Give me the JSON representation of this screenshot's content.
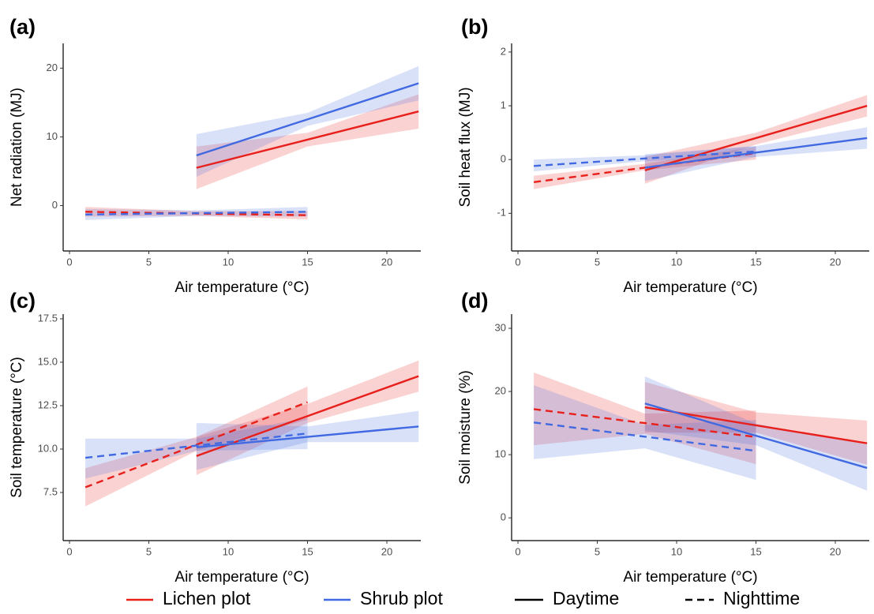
{
  "chart_data": [
    {
      "type": "line",
      "panel_label": "(a)",
      "xlabel": "Air temperature (°C)",
      "ylabel": "Net radiation (MJ)",
      "xlim": [
        -0.4,
        22.14
      ],
      "xticks": [
        0,
        5,
        10,
        15,
        20
      ],
      "ylim": [
        -6.6,
        23.6
      ],
      "yticks": [
        0,
        10,
        20
      ],
      "series": [
        {
          "color": "#e8201c",
          "dash": "solid",
          "x": [
            8,
            15,
            22
          ],
          "values": [
            5.5,
            9.6,
            13.7
          ],
          "lower": [
            2.4,
            8.6,
            11.2
          ],
          "upper": [
            8.6,
            10.6,
            16.2
          ]
        },
        {
          "color": "#e8201c",
          "dash": "dashed",
          "x": [
            1,
            8,
            15
          ],
          "values": [
            -0.9,
            -1.15,
            -1.4
          ],
          "lower": [
            -1.6,
            -1.5,
            -2.0
          ],
          "upper": [
            -0.2,
            -0.8,
            -0.8
          ]
        },
        {
          "color": "#4169e1",
          "dash": "solid",
          "x": [
            8,
            15,
            22
          ],
          "values": [
            7.3,
            12.55,
            17.8
          ],
          "lower": [
            4.2,
            11.6,
            15.3
          ],
          "upper": [
            10.4,
            13.5,
            20.3
          ]
        },
        {
          "color": "#4169e1",
          "dash": "dashed",
          "x": [
            1,
            8,
            15
          ],
          "values": [
            -1.3,
            -1.1,
            -0.9
          ],
          "lower": [
            -2.1,
            -1.5,
            -1.6
          ],
          "upper": [
            -0.5,
            -0.7,
            -0.2
          ]
        }
      ]
    },
    {
      "type": "line",
      "panel_label": "(b)",
      "xlabel": "Air temperature (°C)",
      "ylabel": "Soil heat flux (MJ)",
      "xlim": [
        -0.4,
        22.14
      ],
      "xticks": [
        0,
        5,
        10,
        15,
        20
      ],
      "ylim": [
        -1.7,
        2.16
      ],
      "yticks": [
        -1,
        0,
        1,
        2
      ],
      "series": [
        {
          "color": "#e8201c",
          "dash": "solid",
          "x": [
            8,
            15,
            22
          ],
          "values": [
            -0.2,
            0.4,
            1.0
          ],
          "lower": [
            -0.45,
            0.28,
            0.8
          ],
          "upper": [
            0.05,
            0.5,
            1.2
          ]
        },
        {
          "color": "#e8201c",
          "dash": "dashed",
          "x": [
            1,
            8,
            15
          ],
          "values": [
            -0.42,
            -0.15,
            0.12
          ],
          "lower": [
            -0.55,
            -0.2,
            0.0
          ],
          "upper": [
            -0.3,
            -0.08,
            0.24
          ]
        },
        {
          "color": "#4169e1",
          "dash": "solid",
          "x": [
            8,
            15,
            22
          ],
          "values": [
            -0.15,
            0.13,
            0.4
          ],
          "lower": [
            -0.4,
            0.05,
            0.2
          ],
          "upper": [
            0.1,
            0.25,
            0.6
          ]
        },
        {
          "color": "#4169e1",
          "dash": "dashed",
          "x": [
            1,
            8,
            15
          ],
          "values": [
            -0.12,
            0.02,
            0.15
          ],
          "lower": [
            -0.22,
            -0.03,
            0.05
          ],
          "upper": [
            0.0,
            0.08,
            0.25
          ]
        }
      ]
    },
    {
      "type": "line",
      "panel_label": "(c)",
      "xlabel": "Air temperature (°C)",
      "ylabel": "Soil temperature (°C)",
      "xlim": [
        -0.4,
        22.14
      ],
      "xticks": [
        0,
        5,
        10,
        15,
        20
      ],
      "ylim": [
        4.73,
        17.77
      ],
      "yticks": [
        7.5,
        {
          "value": 10,
          "label": "10.0"
        },
        12.5,
        {
          "value": 15,
          "label": "15.0"
        },
        17.5
      ],
      "series": [
        {
          "color": "#e8201c",
          "dash": "solid",
          "x": [
            8,
            15,
            22
          ],
          "values": [
            9.6,
            11.9,
            14.2
          ],
          "lower": [
            8.5,
            11.5,
            13.3
          ],
          "upper": [
            10.7,
            12.6,
            15.1
          ]
        },
        {
          "color": "#e8201c",
          "dash": "dashed",
          "x": [
            1,
            8,
            15
          ],
          "values": [
            7.8,
            10.25,
            12.7
          ],
          "lower": [
            6.7,
            9.9,
            11.7
          ],
          "upper": [
            8.9,
            10.7,
            13.6
          ]
        },
        {
          "color": "#4169e1",
          "dash": "solid",
          "x": [
            8,
            15,
            22
          ],
          "values": [
            10.1,
            10.7,
            11.3
          ],
          "lower": [
            8.8,
            10.4,
            10.4
          ],
          "upper": [
            11.5,
            11.3,
            12.2
          ]
        },
        {
          "color": "#4169e1",
          "dash": "dashed",
          "x": [
            1,
            8,
            15
          ],
          "values": [
            9.5,
            10.2,
            10.9
          ],
          "lower": [
            8.3,
            9.9,
            10.0
          ],
          "upper": [
            10.6,
            10.6,
            11.8
          ]
        }
      ]
    },
    {
      "type": "line",
      "panel_label": "(d)",
      "xlabel": "Air temperature (°C)",
      "ylabel": "Soil moisture (%)",
      "xlim": [
        -0.4,
        22.14
      ],
      "xticks": [
        0,
        5,
        10,
        15,
        20
      ],
      "ylim": [
        -3.6,
        32.25
      ],
      "yticks": [
        0,
        10,
        20,
        30
      ],
      "series": [
        {
          "color": "#e8201c",
          "dash": "solid",
          "x": [
            8,
            15,
            22
          ],
          "values": [
            17.5,
            14.65,
            11.8
          ],
          "lower": [
            13.5,
            13.5,
            8.4
          ],
          "upper": [
            21.5,
            16.7,
            15.4
          ]
        },
        {
          "color": "#e8201c",
          "dash": "dashed",
          "x": [
            1,
            8,
            15
          ],
          "values": [
            17.2,
            15.0,
            12.8
          ],
          "lower": [
            11.5,
            13.3,
            8.5
          ],
          "upper": [
            23,
            16.5,
            17
          ]
        },
        {
          "color": "#4169e1",
          "dash": "solid",
          "x": [
            8,
            15,
            22
          ],
          "values": [
            18.1,
            13.0,
            7.9
          ],
          "lower": [
            13.8,
            11.5,
            4.3
          ],
          "upper": [
            22.4,
            14.9,
            11.6
          ]
        },
        {
          "color": "#4169e1",
          "dash": "dashed",
          "x": [
            1,
            8,
            15
          ],
          "values": [
            15.1,
            12.85,
            10.6
          ],
          "lower": [
            9.3,
            11,
            6
          ],
          "upper": [
            21,
            14.7,
            15.5
          ]
        }
      ]
    }
  ],
  "legend": {
    "colors": [
      {
        "name": "Lichen plot",
        "color": "#e8201c"
      },
      {
        "name": "Shrub plot",
        "color": "#4169e1"
      }
    ],
    "linetypes": [
      {
        "name": "Daytime",
        "dash": "solid"
      },
      {
        "name": "Nighttime",
        "dash": "dashed"
      }
    ]
  }
}
